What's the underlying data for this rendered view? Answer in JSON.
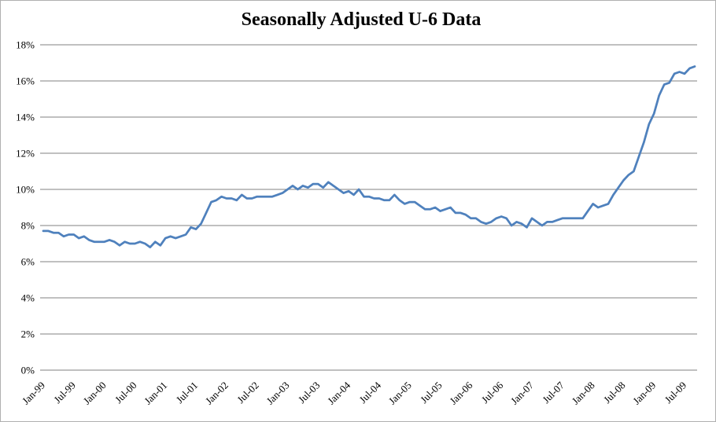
{
  "chart_data": {
    "type": "line",
    "title": "Seasonally Adjusted U-6 Data",
    "xlabel": "",
    "ylabel": "",
    "ylim": [
      0,
      18
    ],
    "ytick_step": 2,
    "y_tick_labels": [
      "0%",
      "2%",
      "4%",
      "6%",
      "8%",
      "10%",
      "12%",
      "14%",
      "16%",
      "18%"
    ],
    "x_tick_labels": [
      "Jan-99",
      "Jul-99",
      "Jan-00",
      "Jul-00",
      "Jan-01",
      "Jul-01",
      "Jan-02",
      "Jul-02",
      "Jan-03",
      "Jul-03",
      "Jan-04",
      "Jul-04",
      "Jan-05",
      "Jul-05",
      "Jan-06",
      "Jul-06",
      "Jan-07",
      "Jul-07",
      "Jan-08",
      "Jul-08",
      "Jan-09",
      "Jul-09"
    ],
    "x_tick_every": 6,
    "x_frequency": "monthly",
    "grid": true,
    "legend_position": "none",
    "line_color": "#4f81bd",
    "gridline_color": "#828282",
    "text_color": "#000000",
    "series": [
      {
        "name": "U-6",
        "values": [
          7.7,
          7.7,
          7.6,
          7.6,
          7.4,
          7.5,
          7.5,
          7.3,
          7.4,
          7.2,
          7.1,
          7.1,
          7.1,
          7.2,
          7.1,
          6.9,
          7.1,
          7.0,
          7.0,
          7.1,
          7.0,
          6.8,
          7.1,
          6.9,
          7.3,
          7.4,
          7.3,
          7.4,
          7.5,
          7.9,
          7.8,
          8.1,
          8.7,
          9.3,
          9.4,
          9.6,
          9.5,
          9.5,
          9.4,
          9.7,
          9.5,
          9.5,
          9.6,
          9.6,
          9.6,
          9.6,
          9.7,
          9.8,
          10.0,
          10.2,
          10.0,
          10.2,
          10.1,
          10.3,
          10.3,
          10.1,
          10.4,
          10.2,
          10.0,
          9.8,
          9.9,
          9.7,
          10.0,
          9.6,
          9.6,
          9.5,
          9.5,
          9.4,
          9.4,
          9.7,
          9.4,
          9.2,
          9.3,
          9.3,
          9.1,
          8.9,
          8.9,
          9.0,
          8.8,
          8.9,
          9.0,
          8.7,
          8.7,
          8.6,
          8.4,
          8.4,
          8.2,
          8.1,
          8.2,
          8.4,
          8.5,
          8.4,
          8.0,
          8.2,
          8.1,
          7.9,
          8.4,
          8.2,
          8.0,
          8.2,
          8.2,
          8.3,
          8.4,
          8.4,
          8.4,
          8.4,
          8.4,
          8.8,
          9.2,
          9.0,
          9.1,
          9.2,
          9.7,
          10.1,
          10.5,
          10.8,
          11.0,
          11.8,
          12.6,
          13.6,
          14.2,
          15.2,
          15.8,
          15.9,
          16.4,
          16.5,
          16.4,
          16.7,
          16.8
        ]
      }
    ]
  }
}
